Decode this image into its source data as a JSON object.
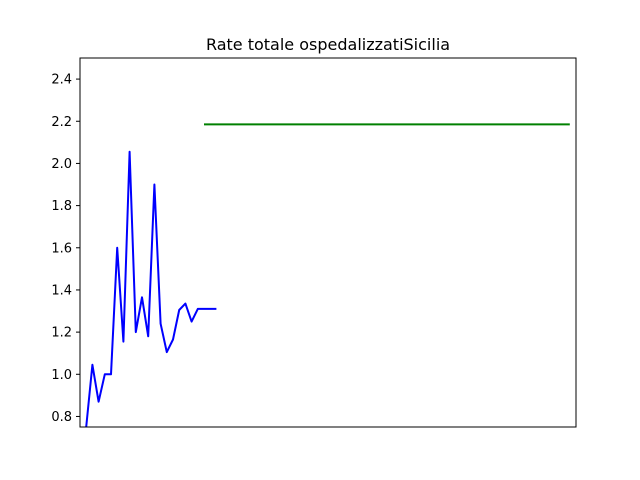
{
  "chart_data": {
    "type": "line",
    "title": "Rate totale ospedalizzatiSicilia",
    "xlabel": "",
    "ylabel": "",
    "ylim": [
      0.75,
      2.5
    ],
    "yticks": [
      0.8,
      1.0,
      1.2,
      1.4,
      1.6,
      1.8,
      2.0,
      2.2,
      2.4
    ],
    "xlim": [
      0,
      80
    ],
    "grid": false,
    "series": [
      {
        "color": "#0000ff",
        "x": [
          1,
          2,
          3,
          4,
          5,
          6,
          7,
          8,
          9,
          10,
          11,
          12,
          13,
          14,
          15,
          16,
          17,
          18,
          19,
          20,
          21,
          22
        ],
        "y": [
          0.75,
          1.045,
          0.87,
          1.0,
          1.0,
          1.6,
          1.155,
          2.055,
          1.2,
          1.365,
          1.18,
          1.9,
          1.24,
          1.105,
          1.165,
          1.305,
          1.335,
          1.25,
          1.31,
          1.31,
          1.31,
          1.31
        ]
      },
      {
        "color": "#008000",
        "x": [
          20,
          79
        ],
        "y": [
          2.185,
          2.185
        ]
      }
    ]
  }
}
